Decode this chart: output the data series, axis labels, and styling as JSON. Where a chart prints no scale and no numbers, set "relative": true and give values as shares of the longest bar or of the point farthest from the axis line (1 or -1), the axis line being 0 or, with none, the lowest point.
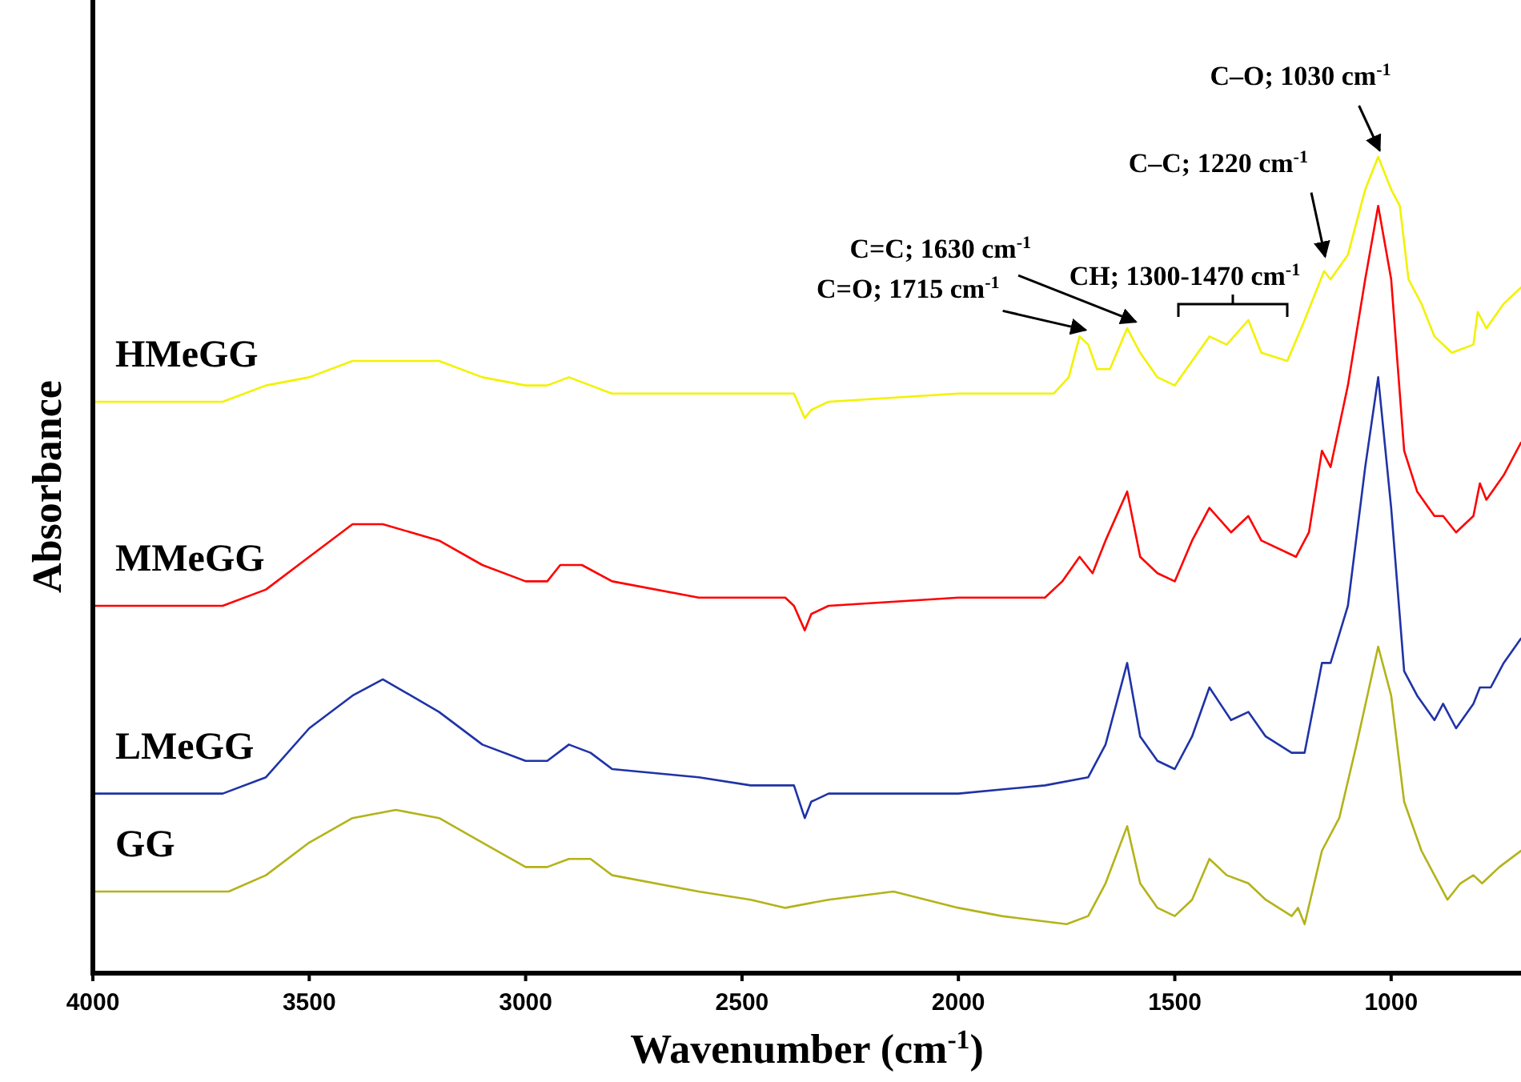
{
  "chart_data": {
    "type": "line",
    "xlabel": "Wavenumber (cm$^{-1}$)",
    "ylabel": "Absorbance",
    "relative": true,
    "xlim": [
      4000,
      700
    ],
    "xticks": [
      4000,
      3500,
      3000,
      2500,
      2000,
      1500,
      1000
    ],
    "grid": false,
    "tick_labels": "x",
    "marker": "none",
    "line_style": "solid",
    "series": [
      {
        "name": "HMeGG",
        "color": "#f2f200",
        "x": [
          4000,
          3700,
          3600,
          3500,
          3400,
          3330,
          3200,
          3100,
          3000,
          2950,
          2900,
          2850,
          2800,
          2600,
          2480,
          2380,
          2355,
          2340,
          2300,
          2000,
          1780,
          1745,
          1720,
          1700,
          1680,
          1650,
          1610,
          1580,
          1540,
          1500,
          1460,
          1420,
          1380,
          1330,
          1300,
          1240,
          1200,
          1155,
          1140,
          1100,
          1060,
          1030,
          1000,
          980,
          960,
          930,
          900,
          860,
          810,
          800,
          780,
          740,
          700
        ],
        "values": [
          0.7,
          0.7,
          0.72,
          0.73,
          0.75,
          0.75,
          0.75,
          0.73,
          0.72,
          0.72,
          0.73,
          0.72,
          0.71,
          0.71,
          0.71,
          0.71,
          0.68,
          0.69,
          0.7,
          0.71,
          0.71,
          0.73,
          0.78,
          0.77,
          0.74,
          0.74,
          0.79,
          0.76,
          0.73,
          0.72,
          0.75,
          0.78,
          0.77,
          0.8,
          0.76,
          0.75,
          0.8,
          0.86,
          0.85,
          0.88,
          0.96,
          1.0,
          0.96,
          0.94,
          0.85,
          0.82,
          0.78,
          0.76,
          0.77,
          0.81,
          0.79,
          0.82,
          0.84
        ]
      },
      {
        "name": "MMeGG",
        "color": "#ff0000",
        "x": [
          4000,
          3700,
          3600,
          3500,
          3400,
          3330,
          3200,
          3100,
          3000,
          2950,
          2920,
          2870,
          2800,
          2600,
          2400,
          2380,
          2355,
          2340,
          2300,
          2000,
          1800,
          1760,
          1720,
          1690,
          1660,
          1610,
          1580,
          1540,
          1500,
          1460,
          1420,
          1370,
          1330,
          1300,
          1220,
          1190,
          1160,
          1140,
          1100,
          1060,
          1030,
          1000,
          970,
          940,
          900,
          880,
          850,
          810,
          795,
          780,
          740,
          700
        ],
        "values": [
          0.45,
          0.45,
          0.47,
          0.51,
          0.55,
          0.55,
          0.53,
          0.5,
          0.48,
          0.48,
          0.5,
          0.5,
          0.48,
          0.46,
          0.46,
          0.45,
          0.42,
          0.44,
          0.45,
          0.46,
          0.46,
          0.48,
          0.51,
          0.49,
          0.53,
          0.59,
          0.51,
          0.49,
          0.48,
          0.53,
          0.57,
          0.54,
          0.56,
          0.53,
          0.51,
          0.54,
          0.64,
          0.62,
          0.72,
          0.85,
          0.94,
          0.85,
          0.64,
          0.59,
          0.56,
          0.56,
          0.54,
          0.56,
          0.6,
          0.58,
          0.61,
          0.65
        ]
      },
      {
        "name": "LMeGG",
        "color": "#1f33a6",
        "x": [
          4000,
          3700,
          3600,
          3500,
          3400,
          3330,
          3200,
          3100,
          3000,
          2950,
          2900,
          2850,
          2800,
          2600,
          2480,
          2380,
          2355,
          2340,
          2300,
          2000,
          1800,
          1700,
          1660,
          1610,
          1580,
          1540,
          1500,
          1460,
          1420,
          1370,
          1330,
          1290,
          1230,
          1200,
          1160,
          1140,
          1100,
          1060,
          1030,
          1000,
          970,
          940,
          900,
          880,
          850,
          810,
          795,
          770,
          740,
          700
        ],
        "values": [
          0.22,
          0.22,
          0.24,
          0.3,
          0.34,
          0.36,
          0.32,
          0.28,
          0.26,
          0.26,
          0.28,
          0.27,
          0.25,
          0.24,
          0.23,
          0.23,
          0.19,
          0.21,
          0.22,
          0.22,
          0.23,
          0.24,
          0.28,
          0.38,
          0.29,
          0.26,
          0.25,
          0.29,
          0.35,
          0.31,
          0.32,
          0.29,
          0.27,
          0.27,
          0.38,
          0.38,
          0.45,
          0.62,
          0.73,
          0.57,
          0.37,
          0.34,
          0.31,
          0.33,
          0.3,
          0.33,
          0.35,
          0.35,
          0.38,
          0.41
        ]
      },
      {
        "name": "GG",
        "color": "#b3b31a",
        "x": [
          4000,
          3686,
          3600,
          3500,
          3400,
          3300,
          3200,
          3100,
          3000,
          2950,
          2900,
          2850,
          2800,
          2600,
          2480,
          2400,
          2300,
          2150,
          2000,
          1900,
          1750,
          1700,
          1660,
          1610,
          1580,
          1540,
          1500,
          1460,
          1420,
          1380,
          1330,
          1290,
          1230,
          1215,
          1200,
          1160,
          1120,
          1080,
          1030,
          1000,
          970,
          930,
          900,
          870,
          840,
          810,
          790,
          750,
          700
        ],
        "values": [
          0.1,
          0.1,
          0.12,
          0.16,
          0.19,
          0.2,
          0.19,
          0.16,
          0.13,
          0.13,
          0.14,
          0.14,
          0.12,
          0.1,
          0.09,
          0.08,
          0.09,
          0.1,
          0.08,
          0.07,
          0.06,
          0.07,
          0.11,
          0.18,
          0.11,
          0.08,
          0.07,
          0.09,
          0.14,
          0.12,
          0.11,
          0.09,
          0.07,
          0.08,
          0.06,
          0.15,
          0.19,
          0.28,
          0.4,
          0.34,
          0.21,
          0.15,
          0.12,
          0.09,
          0.11,
          0.12,
          0.11,
          0.13,
          0.15
        ]
      }
    ],
    "annotations": [
      {
        "text": "C=O; 1715 cm$^{-1}$",
        "x": 1720,
        "y": 0.78
      },
      {
        "text": "C=C; 1630 cm$^{-1}$",
        "x": 1610,
        "y": 0.79
      },
      "CH; 1300-1470 cm$^{-1}$",
      {
        "text": "C–C; 1220 cm$^{-1}$",
        "x": 1155,
        "y": 0.87
      },
      {
        "text": "C–O; 1030 cm$^{-1}$",
        "x": 1030,
        "y": 1.0
      }
    ]
  }
}
